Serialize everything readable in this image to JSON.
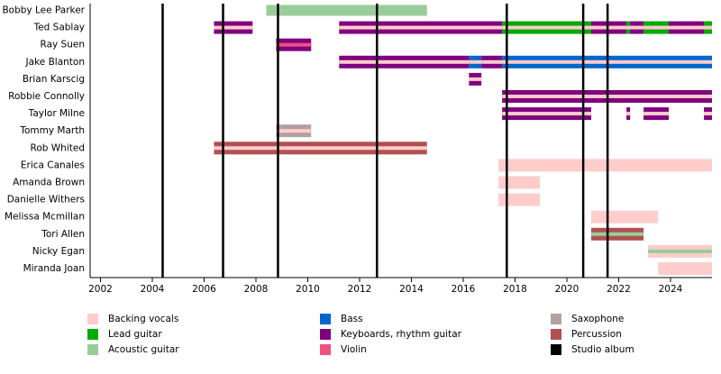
{
  "chart_data": {
    "type": "timeline",
    "xlim": [
      2001.6,
      2025.6
    ],
    "xticks": [
      2002,
      2004,
      2006,
      2008,
      2010,
      2012,
      2014,
      2016,
      2018,
      2020,
      2022,
      2024
    ],
    "roles": [
      {
        "name": "Backing vocals",
        "color": "#ffcccc"
      },
      {
        "name": "Lead guitar",
        "color": "#00aa00"
      },
      {
        "name": "Acoustic guitar",
        "color": "#99cc99"
      },
      {
        "name": "Bass",
        "color": "#0066cc"
      },
      {
        "name": "Keyboards, rhythm guitar",
        "color": "#800080"
      },
      {
        "name": "Violin",
        "color": "#f05080"
      },
      {
        "name": "Saxophone",
        "color": "#b3a0a0"
      },
      {
        "name": "Percussion",
        "color": "#b05050"
      },
      {
        "name": "Studio album",
        "color": "#000000"
      }
    ],
    "albums": [
      2004.4,
      2006.73,
      2008.85,
      2012.67,
      2017.68,
      2020.63,
      2021.57
    ],
    "members": [
      {
        "name": "Bobby Lee Parker",
        "stints": [
          {
            "role": "Acoustic guitar",
            "start": 2008.4,
            "end": 2014.6
          }
        ]
      },
      {
        "name": "Ted Sablay",
        "stints": [
          {
            "role": "Keyboards, rhythm guitar",
            "stripe": "Backing vocals",
            "start": 2006.38,
            "end": 2007.87
          },
          {
            "role": "Keyboards, rhythm guitar",
            "stripe": "Backing vocals",
            "start": 2011.21,
            "end": 2017.5
          },
          {
            "role": "Lead guitar",
            "stripe": "Backing vocals",
            "start": 2017.5,
            "end": 2020.94
          },
          {
            "role": "Keyboards, rhythm guitar",
            "stripe": "Backing vocals",
            "start": 2020.94,
            "end": 2022.3
          },
          {
            "role": "Lead guitar",
            "stripe": "Backing vocals",
            "start": 2022.3,
            "end": 2022.44
          },
          {
            "role": "Keyboards, rhythm guitar",
            "stripe": "Backing vocals",
            "start": 2022.44,
            "end": 2022.96
          },
          {
            "role": "Lead guitar",
            "stripe": "Backing vocals",
            "start": 2022.96,
            "end": 2023.93
          },
          {
            "role": "Keyboards, rhythm guitar",
            "stripe": "Backing vocals",
            "start": 2023.93,
            "end": 2025.29
          },
          {
            "role": "Lead guitar",
            "stripe": "Backing vocals",
            "start": 2025.29,
            "end": 2025.6
          }
        ]
      },
      {
        "name": "Ray Suen",
        "stints": [
          {
            "role": "Keyboards, rhythm guitar",
            "stripe": "Violin",
            "start": 2008.78,
            "end": 2010.13
          }
        ]
      },
      {
        "name": "Jake Blanton",
        "stints": [
          {
            "role": "Keyboards, rhythm guitar",
            "stripe": "Backing vocals",
            "start": 2011.21,
            "end": 2016.22
          },
          {
            "role": "Bass",
            "stripe": "Backing vocals",
            "start": 2016.22,
            "end": 2016.7
          },
          {
            "role": "Keyboards, rhythm guitar",
            "stripe": "Backing vocals",
            "start": 2016.7,
            "end": 2017.5
          },
          {
            "role": "Bass",
            "stripe": "Backing vocals",
            "start": 2017.5,
            "end": 2025.6
          }
        ]
      },
      {
        "name": "Brian Karscig",
        "stints": [
          {
            "role": "Keyboards, rhythm guitar",
            "stripe": "Backing vocals",
            "start": 2016.22,
            "end": 2016.7
          }
        ]
      },
      {
        "name": "Robbie Connolly",
        "stints": [
          {
            "role": "Keyboards, rhythm guitar",
            "stripe": "Backing vocals",
            "start": 2017.5,
            "end": 2025.6
          }
        ]
      },
      {
        "name": "Taylor Milne",
        "stints": [
          {
            "role": "Keyboards, rhythm guitar",
            "stripe": "Backing vocals",
            "start": 2017.5,
            "end": 2020.94
          },
          {
            "role": "Keyboards, rhythm guitar",
            "stripe": "Backing vocals",
            "start": 2022.3,
            "end": 2022.44
          },
          {
            "role": "Keyboards, rhythm guitar",
            "stripe": "Backing vocals",
            "start": 2022.96,
            "end": 2023.93
          },
          {
            "role": "Keyboards, rhythm guitar",
            "stripe": "Backing vocals",
            "start": 2025.29,
            "end": 2025.6
          }
        ]
      },
      {
        "name": "Tommy Marth",
        "stints": [
          {
            "role": "Saxophone",
            "stripe": "Backing vocals",
            "start": 2008.78,
            "end": 2010.13
          }
        ]
      },
      {
        "name": "Rob Whited",
        "stints": [
          {
            "role": "Percussion",
            "stripe": "Backing vocals",
            "start": 2006.38,
            "end": 2014.6
          }
        ]
      },
      {
        "name": "Erica Canales",
        "stints": [
          {
            "role": "Backing vocals",
            "start": 2017.36,
            "end": 2025.6
          }
        ]
      },
      {
        "name": "Amanda Brown",
        "stints": [
          {
            "role": "Backing vocals",
            "start": 2017.36,
            "end": 2018.96
          }
        ]
      },
      {
        "name": "Danielle Withers",
        "stints": [
          {
            "role": "Backing vocals",
            "start": 2017.36,
            "end": 2018.96
          }
        ]
      },
      {
        "name": "Melissa Mcmillan",
        "stints": [
          {
            "role": "Backing vocals",
            "start": 2020.94,
            "end": 2023.52
          }
        ]
      },
      {
        "name": "Tori Allen",
        "stints": [
          {
            "role": "Percussion",
            "stripe": "Acoustic guitar",
            "start": 2020.94,
            "end": 2022.96
          }
        ]
      },
      {
        "name": "Nicky Egan",
        "stints": [
          {
            "role": "Backing vocals",
            "stripe": "Acoustic guitar",
            "start": 2023.13,
            "end": 2025.6
          }
        ]
      },
      {
        "name": "Miranda Joan",
        "stints": [
          {
            "role": "Backing vocals",
            "start": 2023.52,
            "end": 2025.6
          }
        ]
      }
    ]
  }
}
